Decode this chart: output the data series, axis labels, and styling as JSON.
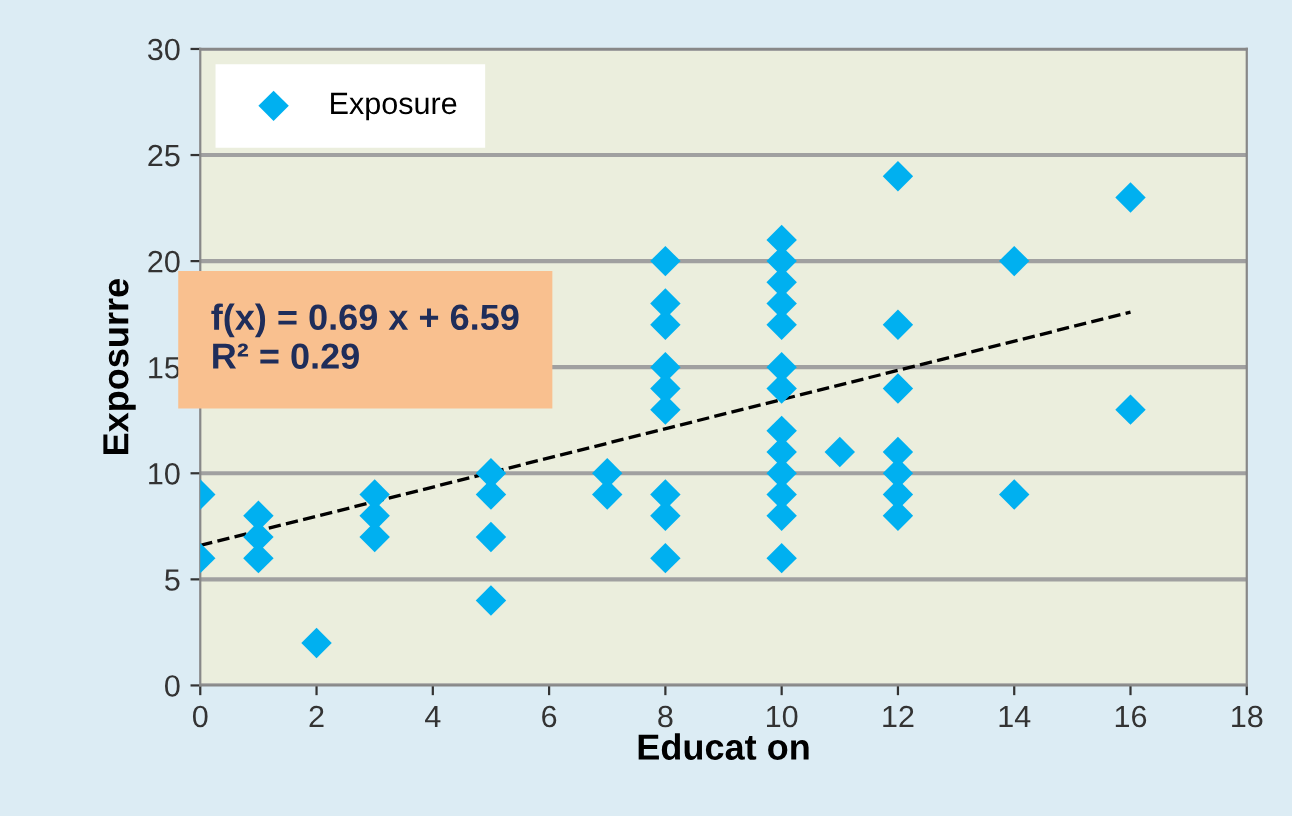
{
  "chart_data": {
    "type": "scatter",
    "xlabel": "Educat on",
    "ylabel": "Exposurre",
    "xlim": [
      0,
      18
    ],
    "ylim": [
      0,
      30
    ],
    "xticks": [
      0,
      2,
      4,
      6,
      8,
      10,
      12,
      14,
      16,
      18
    ],
    "yticks": [
      0,
      5,
      10,
      15,
      20,
      25,
      30
    ],
    "grid": "y",
    "legend": "top left",
    "series": [
      {
        "name": "Exposure",
        "color": "#00b0f0",
        "marker": "diamond",
        "x": [
          0,
          0,
          1,
          1,
          1,
          2,
          3,
          3,
          3,
          5,
          5,
          5,
          5,
          7,
          7,
          8,
          8,
          8,
          8,
          8,
          8,
          8,
          8,
          8,
          10,
          10,
          10,
          10,
          10,
          10,
          10,
          10,
          10,
          10,
          10,
          10,
          10,
          11,
          12,
          12,
          12,
          12,
          12,
          12,
          12,
          14,
          14,
          16,
          16
        ],
        "values": [
          9,
          6,
          8,
          7,
          6,
          2,
          9,
          8,
          7,
          10,
          9,
          7,
          4,
          10,
          9,
          20,
          18,
          17,
          15,
          14,
          13,
          9,
          8,
          6,
          21,
          20,
          19,
          18,
          17,
          15,
          14,
          12,
          11,
          10,
          9,
          8,
          6,
          11,
          24,
          17,
          14,
          11,
          10,
          9,
          8,
          20,
          9,
          23,
          13
        ]
      },
      {
        "type": "line",
        "color": "#000000",
        "line_style": "dashed",
        "marker": "none",
        "x": [
          0,
          16
        ],
        "values": [
          6.6,
          17.6
        ]
      }
    ],
    "annotations": [
      "f(x) = 0.69 x + 6.59\nR² = 0.29"
    ]
  }
}
